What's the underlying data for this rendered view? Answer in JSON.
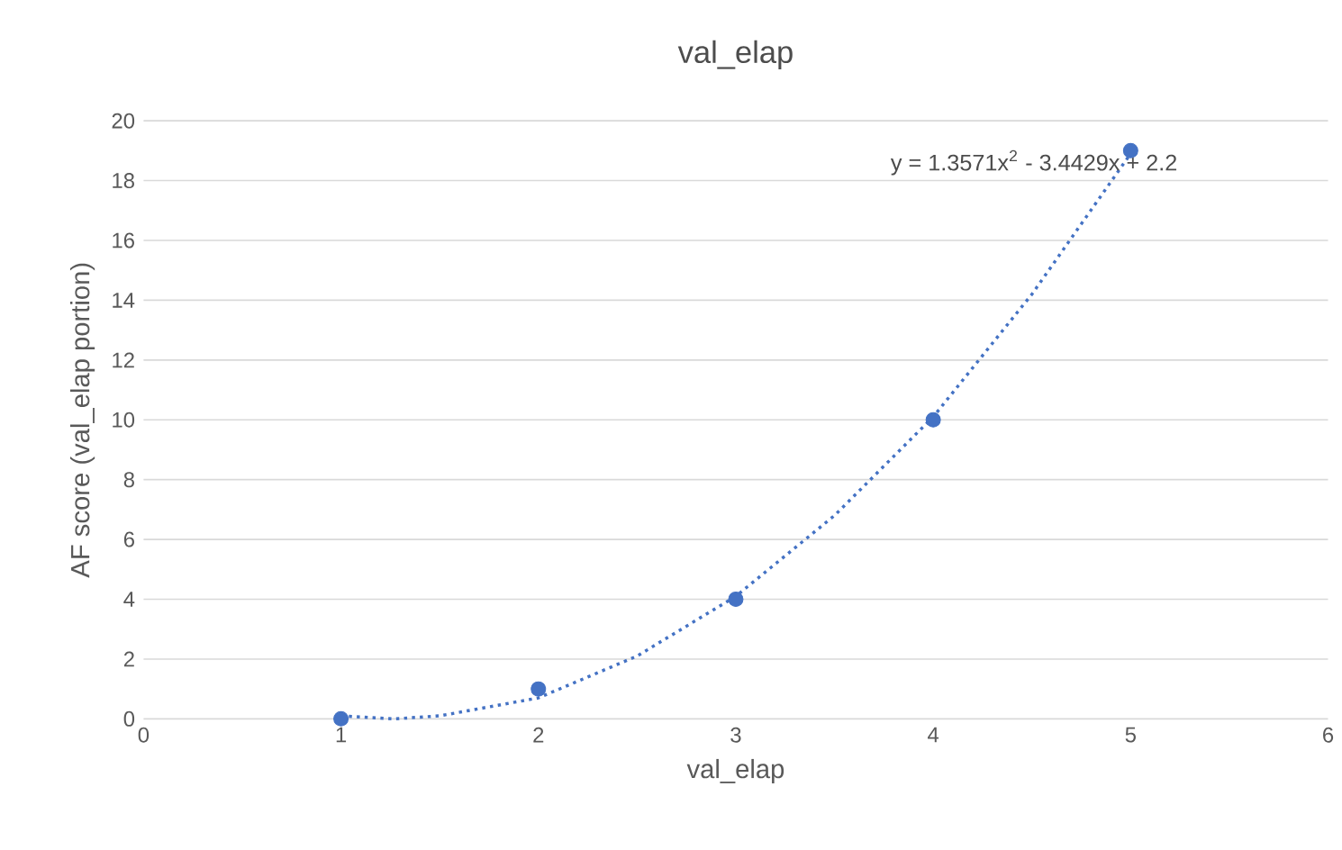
{
  "chart_data": {
    "type": "scatter",
    "title": "val_elap",
    "xlabel": "val_elap",
    "ylabel": "AF score (val_elap portion)",
    "xlim": [
      0,
      6
    ],
    "xticks": [
      0,
      1,
      2,
      3,
      4,
      5,
      6
    ],
    "ylim": [
      0,
      20
    ],
    "yticks": [
      0,
      2,
      4,
      6,
      8,
      10,
      12,
      14,
      16,
      18,
      20
    ],
    "grid": "y",
    "annotations": [
      "y = 1.3571x$^{2}$ - 3.4429x + 2.2"
    ],
    "series": [
      {
        "color": "#4472c4",
        "marker": "circle",
        "x": [
          1,
          2,
          3,
          4,
          5
        ],
        "values": [
          0,
          1,
          4,
          10,
          19
        ]
      },
      {
        "type": "line",
        "color": "#4472c4",
        "marker": "none",
        "line_style": "dotted",
        "x": [
          1,
          1.27,
          1.5,
          2,
          2.5,
          3,
          3.5,
          4,
          4.5,
          5
        ],
        "values": [
          0.1,
          0.0,
          0.1,
          0.7,
          2.1,
          4.1,
          6.8,
          10.1,
          14.2,
          18.9
        ]
      }
    ]
  }
}
